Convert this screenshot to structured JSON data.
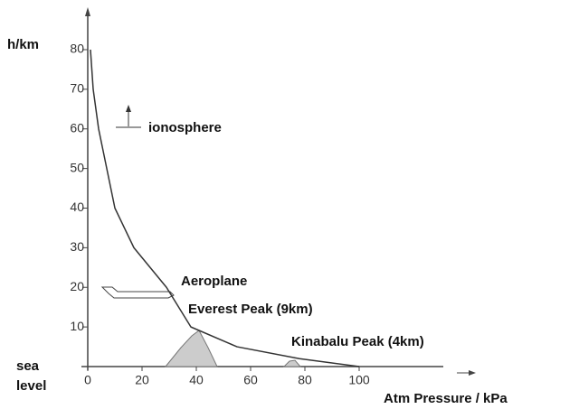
{
  "chart_data": {
    "type": "line",
    "x_label": "Atm Pressure / kPa",
    "y_label": "h/km",
    "x": [
      1,
      2,
      4,
      7,
      10,
      17,
      29,
      38,
      55,
      78,
      100
    ],
    "values": [
      80,
      70,
      60,
      50,
      40,
      30,
      20,
      10,
      5,
      2,
      0
    ],
    "color": "#333333",
    "xlim": [
      0,
      130
    ],
    "ylim": [
      0,
      80
    ],
    "xticks": [
      0,
      20,
      40,
      60,
      80,
      100
    ],
    "yticks": [
      10,
      20,
      30,
      40,
      50,
      60,
      70,
      80
    ],
    "grid": false,
    "annotations": [
      "ionosphere",
      "Aeroplane",
      "Everest Peak (9km)",
      "Kinabalu Peak  (4km)",
      "sea level"
    ]
  }
}
